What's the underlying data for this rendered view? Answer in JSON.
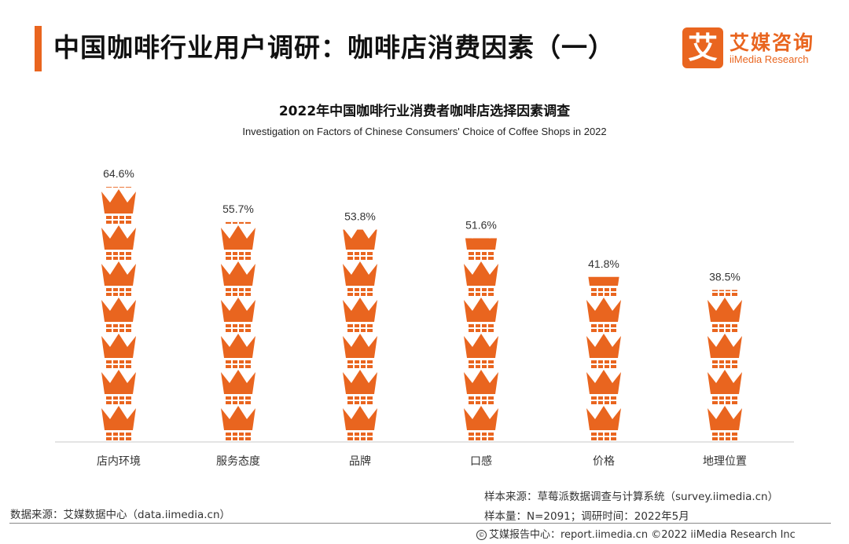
{
  "header": {
    "title": "中国咖啡行业用户调研：咖啡店消费因素（一）",
    "logo_mark": "艾",
    "logo_cn": "艾媒咨询",
    "logo_en": "iiMedia Research"
  },
  "colors": {
    "accent": "#e9651f",
    "icon": "#e9651f",
    "axis": "#c8c8c8"
  },
  "chart_data": {
    "type": "bar",
    "title": "2022年中国咖啡行业消费者咖啡店选择因素调查",
    "subtitle": "Investigation on Factors of Chinese Consumers' Choice of Coffee Shops in 2022",
    "categories": [
      "店内环境",
      "服务态度",
      "品牌",
      "口感",
      "价格",
      "地理位置"
    ],
    "values": [
      64.6,
      55.7,
      53.8,
      51.6,
      41.8,
      38.5
    ],
    "value_labels": [
      "64.6%",
      "55.7%",
      "53.8%",
      "51.6%",
      "41.8%",
      "38.5%"
    ],
    "unit": "%",
    "ylim": [
      0,
      70
    ],
    "icon": "crown-icon",
    "xlabel": "",
    "ylabel": ""
  },
  "footer": {
    "source": "数据来源：艾媒数据中心（data.iimedia.cn）",
    "sample_source": "样本来源：草莓派数据调查与计算系统（survey.iimedia.cn）",
    "sample_info": "样本量：N=2091；调研时间：2022年5月",
    "copyright": "艾媒报告中心：report.iimedia.cn  ©2022  iiMedia Research  Inc"
  }
}
